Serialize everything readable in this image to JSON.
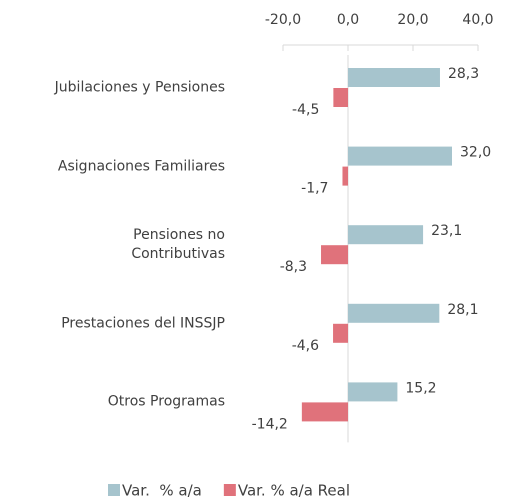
{
  "chart_data": {
    "type": "bar",
    "orientation": "horizontal",
    "categories": [
      "Jubilaciones y Pensiones",
      "Asignaciones Familiares",
      "Pensiones no\nContributivas",
      "Prestaciones del INSSJP",
      "Otros Programas"
    ],
    "series": [
      {
        "name": "Var.  % a/a",
        "color": "#a6c4cd",
        "values": [
          28.3,
          32.0,
          23.1,
          28.1,
          15.2
        ],
        "value_labels": [
          "28,3",
          "32,0",
          "23,1",
          "28,1",
          "15,2"
        ]
      },
      {
        "name": "Var. % a/a Real",
        "color": "#e0727b",
        "values": [
          -4.5,
          -1.7,
          -8.3,
          -4.6,
          -14.2
        ],
        "value_labels": [
          "-4,5",
          "-1,7",
          "-8,3",
          "-4,6",
          "-14,2"
        ]
      }
    ],
    "xlim": [
      -20,
      40
    ],
    "xticks": [
      {
        "value": -20,
        "label": "-20,0"
      },
      {
        "value": 0,
        "label": "0,0"
      },
      {
        "value": 20,
        "label": "20,0"
      },
      {
        "value": 40,
        "label": "40,0"
      }
    ],
    "legend": "bottom"
  }
}
